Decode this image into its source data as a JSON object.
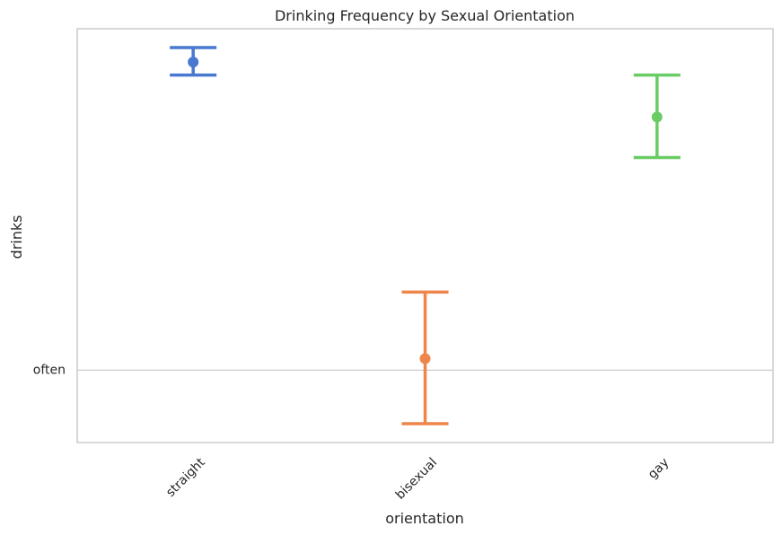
{
  "chart_data": {
    "type": "pointplot",
    "title": "Drinking Frequency by Sexual Orientation",
    "xlabel": "orientation",
    "ylabel": "drinks",
    "categories": [
      "straight",
      "bisexual",
      "gay"
    ],
    "colors": [
      "#4878d0",
      "#ee854a",
      "#6acc64"
    ],
    "y_ticks": [
      {
        "label": "often",
        "value": 0
      }
    ],
    "ylim": [
      -0.5,
      2.36
    ],
    "grid": true,
    "points": [
      {
        "category": "straight",
        "mean": 2.13,
        "ci_low": 2.04,
        "ci_high": 2.23
      },
      {
        "category": "bisexual",
        "mean": 0.08,
        "ci_low": -0.37,
        "ci_high": 0.54
      },
      {
        "category": "gay",
        "mean": 1.75,
        "ci_low": 1.47,
        "ci_high": 2.04
      }
    ]
  }
}
